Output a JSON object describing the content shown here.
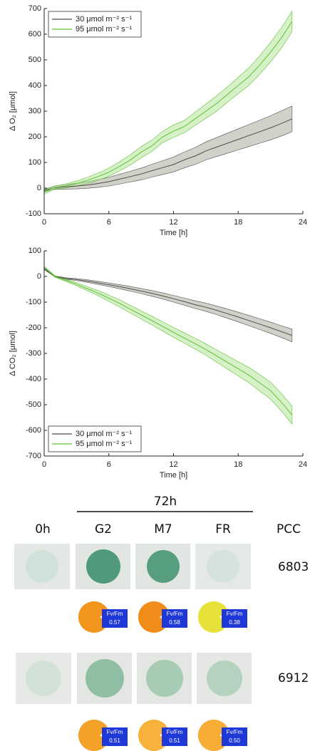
{
  "chart_data": [
    {
      "type": "line",
      "xlabel": "Time [h]",
      "ylabel": "Δ O₂ [μmol]",
      "x": [
        0,
        1,
        2,
        3,
        4,
        5,
        6,
        7,
        8,
        9,
        10,
        11,
        12,
        13,
        14,
        15,
        16,
        17,
        18,
        19,
        20,
        21,
        22,
        23
      ],
      "xlim": [
        0,
        24
      ],
      "xticks": [
        0,
        6,
        12,
        18,
        24
      ],
      "ylim": [
        -100,
        700
      ],
      "yticks": [
        -100,
        0,
        100,
        200,
        300,
        400,
        500,
        600,
        700
      ],
      "legend_loc": "upper left",
      "series": [
        {
          "name": "30 μmol m⁻² s⁻¹",
          "color": "#4d4d4d",
          "band_color": "#a9ad9f",
          "values": [
            -10,
            2,
            5,
            8,
            12,
            18,
            25,
            35,
            45,
            55,
            68,
            80,
            92,
            110,
            125,
            145,
            160,
            175,
            190,
            205,
            220,
            235,
            252,
            270
          ],
          "upper": [
            -5,
            9,
            14,
            19,
            25,
            33,
            42,
            54,
            66,
            78,
            93,
            107,
            121,
            141,
            158,
            180,
            197,
            214,
            231,
            248,
            265,
            282,
            301,
            320
          ],
          "lower": [
            -15,
            -5,
            -4,
            -3,
            -1,
            3,
            8,
            16,
            24,
            32,
            43,
            53,
            63,
            79,
            92,
            110,
            123,
            136,
            149,
            162,
            175,
            188,
            203,
            220
          ]
        },
        {
          "name": "95 μmol m⁻² s⁻¹",
          "color": "#5fc234",
          "band_color": "#b5e39a",
          "values": [
            -15,
            3,
            8,
            18,
            30,
            45,
            62,
            85,
            110,
            140,
            165,
            200,
            222,
            240,
            270,
            300,
            330,
            365,
            400,
            435,
            480,
            530,
            585,
            650
          ],
          "upper": [
            -7,
            9,
            16,
            28,
            42,
            59,
            78,
            103,
            130,
            162,
            187,
            222,
            246,
            264,
            296,
            328,
            360,
            395,
            432,
            469,
            516,
            568,
            625,
            690
          ],
          "lower": [
            -23,
            -3,
            0,
            8,
            18,
            31,
            46,
            67,
            90,
            118,
            143,
            178,
            198,
            216,
            244,
            272,
            300,
            335,
            368,
            401,
            444,
            492,
            545,
            610
          ]
        }
      ]
    },
    {
      "type": "line",
      "xlabel": "Time [h]",
      "ylabel": "Δ CO₂ [μmol]",
      "x": [
        0,
        1,
        2,
        3,
        4,
        5,
        6,
        7,
        8,
        9,
        10,
        11,
        12,
        13,
        14,
        15,
        16,
        17,
        18,
        19,
        20,
        21,
        22,
        23
      ],
      "xlim": [
        0,
        24
      ],
      "xticks": [
        0,
        6,
        12,
        18,
        24
      ],
      "ylim": [
        -700,
        100
      ],
      "yticks": [
        -700,
        -600,
        -500,
        -400,
        -300,
        -200,
        -100,
        0,
        100
      ],
      "legend_loc": "lower left",
      "series": [
        {
          "name": "30 μmol m⁻² s⁻¹",
          "color": "#4d4d4d",
          "band_color": "#a9ad9f",
          "values": [
            30,
            0,
            -8,
            -12,
            -18,
            -25,
            -32,
            -40,
            -48,
            -57,
            -66,
            -76,
            -87,
            -98,
            -110,
            -120,
            -132,
            -145,
            -158,
            -172,
            -186,
            -200,
            -215,
            -230
          ],
          "upper": [
            33,
            2,
            -5,
            -8,
            -13,
            -19,
            -25,
            -32,
            -39,
            -47,
            -55,
            -64,
            -74,
            -84,
            -95,
            -104,
            -115,
            -127,
            -139,
            -152,
            -165,
            -178,
            -192,
            -205
          ],
          "lower": [
            27,
            -2,
            -11,
            -16,
            -23,
            -31,
            -39,
            -48,
            -57,
            -67,
            -77,
            -88,
            -100,
            -112,
            -125,
            -136,
            -149,
            -163,
            -177,
            -192,
            -207,
            -222,
            -238,
            -255
          ]
        },
        {
          "name": "95 μmol m⁻² s⁻¹",
          "color": "#5fc234",
          "band_color": "#b5e39a",
          "values": [
            35,
            0,
            -15,
            -30,
            -48,
            -65,
            -85,
            -105,
            -128,
            -150,
            -172,
            -195,
            -218,
            -240,
            -262,
            -285,
            -310,
            -335,
            -360,
            -385,
            -415,
            -445,
            -490,
            -540
          ],
          "upper": [
            40,
            3,
            -11,
            -24,
            -40,
            -55,
            -73,
            -91,
            -113,
            -134,
            -155,
            -177,
            -199,
            -220,
            -241,
            -263,
            -286,
            -309,
            -332,
            -355,
            -383,
            -412,
            -456,
            -505
          ],
          "lower": [
            30,
            -3,
            -19,
            -36,
            -56,
            -75,
            -97,
            -119,
            -143,
            -166,
            -189,
            -213,
            -237,
            -260,
            -283,
            -307,
            -334,
            -361,
            -388,
            -415,
            -447,
            -478,
            -524,
            -575
          ]
        }
      ]
    }
  ],
  "photo_panel": {
    "group_label": "72h",
    "columns": [
      "0h",
      "G2",
      "M7",
      "FR",
      "PCC"
    ],
    "strains": [
      "6803",
      "6912"
    ],
    "badge_label": "Fv/Fm",
    "fvfm": [
      [
        "0.57",
        "0.58",
        "0.38"
      ],
      [
        "0.51",
        "0.51",
        "0.50"
      ]
    ]
  }
}
